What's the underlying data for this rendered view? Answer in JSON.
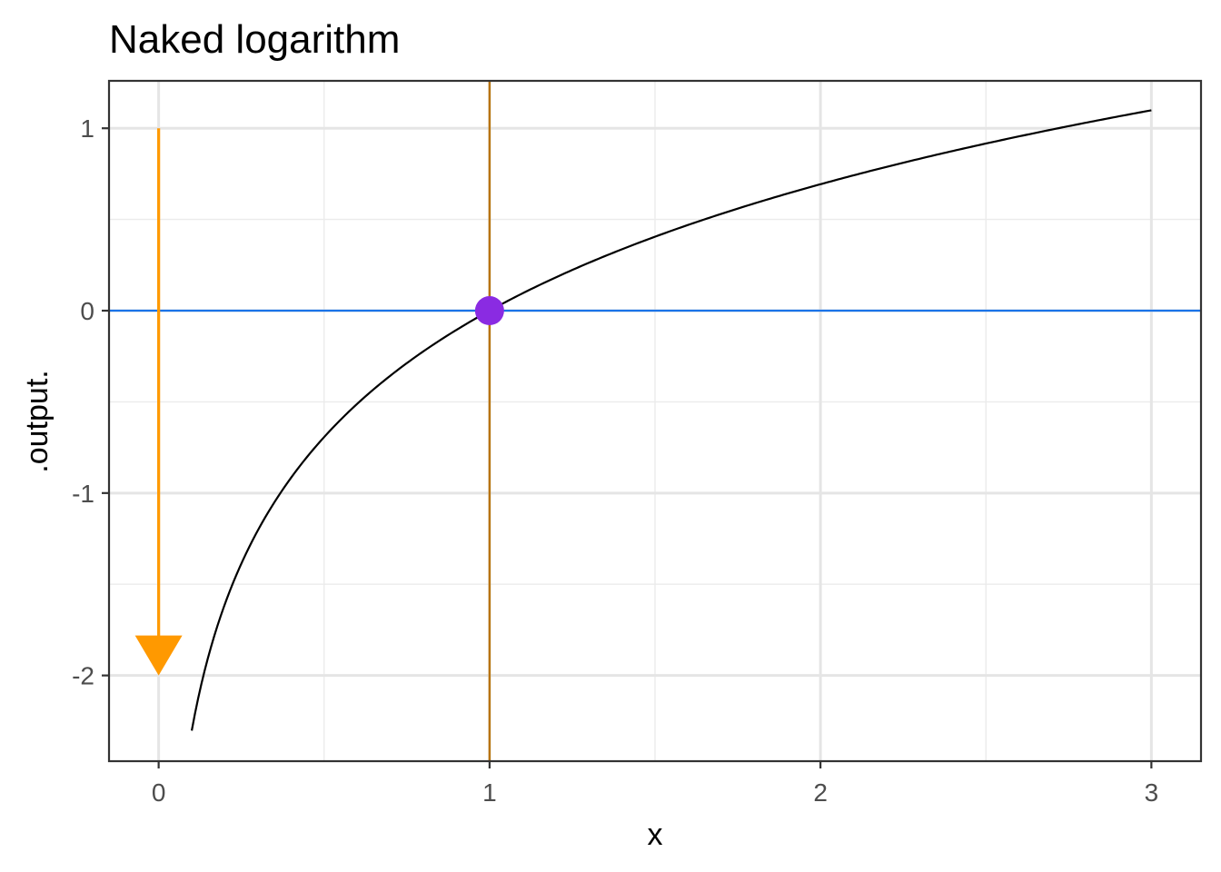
{
  "chart_data": {
    "type": "line",
    "title": "Naked logarithm",
    "xlabel": "x",
    "ylabel": ".output.",
    "xlim": [
      -0.15,
      3.15
    ],
    "ylim": [
      -2.47,
      1.26
    ],
    "x_ticks": [
      0,
      1,
      2,
      3
    ],
    "x_tick_labels": [
      "0",
      "1",
      "2",
      "3"
    ],
    "x_minor": [
      0.5,
      1.5,
      2.5
    ],
    "y_ticks": [
      -2,
      -1,
      0,
      1
    ],
    "y_tick_labels": [
      "-2",
      "-1",
      "0",
      "1"
    ],
    "y_minor": [
      -1.5,
      -0.5,
      0.5
    ],
    "grid": true,
    "theme": "bw",
    "series": [
      {
        "function": "log(x)",
        "x_range": [
          0.1,
          3
        ],
        "color": "#000000"
      }
    ],
    "hline": {
      "y": 0,
      "color": "#1a73e8"
    },
    "vline": {
      "x": 1,
      "color": "#b8730a"
    },
    "point": {
      "x": 1,
      "y": 0,
      "color": "#8a2be2"
    },
    "arrow": {
      "x": 0,
      "y_start": 1,
      "y_end": -2,
      "color": "#ff9900"
    }
  }
}
